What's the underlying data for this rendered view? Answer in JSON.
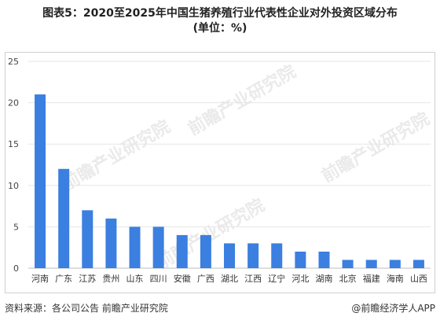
{
  "header": {
    "title_line1": "图表5：2020至2025年中国生猪养殖行业代表性企业对外投资区域分布",
    "title_line2": "(单位：%)"
  },
  "watermark": {
    "text": "前瞻产业研究院"
  },
  "footer": {
    "source": "资料来源：各公司公告 前瞻产业研究院",
    "brand": "@前瞻经济学人APP"
  },
  "chart_data": {
    "type": "bar",
    "categories": [
      "河南",
      "广东",
      "江苏",
      "贵州",
      "山东",
      "四川",
      "安徽",
      "广西",
      "湖北",
      "江西",
      "辽宁",
      "河北",
      "湖南",
      "北京",
      "福建",
      "海南",
      "山西"
    ],
    "values": [
      21,
      12,
      7,
      6,
      5,
      5,
      4,
      4,
      3,
      3,
      3,
      2,
      2,
      1,
      1,
      1,
      1
    ],
    "title": "图表5：2020至2025年中国生猪养殖行业代表性企业对外投资区域分布",
    "ylim": [
      0,
      25
    ],
    "yticks": [
      0,
      5,
      10,
      15,
      20,
      25
    ],
    "grid": true,
    "bar_color": "#3b7fe0",
    "grid_color": "#e6e6e6"
  }
}
